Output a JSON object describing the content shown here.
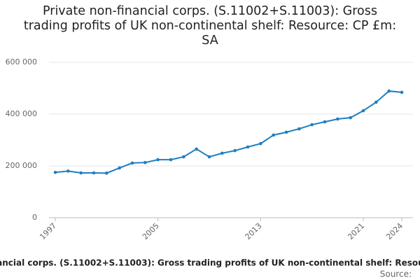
{
  "chart_data": {
    "type": "line",
    "title": "Private non-financial corps. (S.11002+S.11003): Gross trading profits of UK non-continental shelf: Resource: CP £m: SA",
    "source_label": "Source:",
    "x": [
      1997,
      1998,
      1999,
      2000,
      2001,
      2002,
      2003,
      2004,
      2005,
      2006,
      2007,
      2008,
      2009,
      2010,
      2011,
      2012,
      2013,
      2014,
      2015,
      2016,
      2017,
      2018,
      2019,
      2020,
      2021,
      2022,
      2023,
      2024
    ],
    "series": [
      {
        "color": "#1f7fc0",
        "values": [
          175000,
          180000,
          173000,
          173000,
          172000,
          192000,
          211000,
          213000,
          224000,
          224000,
          235000,
          265000,
          235000,
          249000,
          259000,
          273000,
          286000,
          319000,
          330000,
          343000,
          359000,
          370000,
          381000,
          386000,
          413000,
          446000,
          489000,
          484000
        ]
      }
    ],
    "xlim": [
      1997,
      2024
    ],
    "xticks": [
      1997,
      2005,
      2013,
      2021,
      2024
    ],
    "ylim": [
      0,
      600000
    ],
    "yticks": [
      0,
      {
        "value": 200000,
        "label": "200 000"
      },
      {
        "value": 400000,
        "label": "400 000"
      },
      {
        "value": 600000,
        "label": "600 000"
      }
    ],
    "grid": true
  }
}
